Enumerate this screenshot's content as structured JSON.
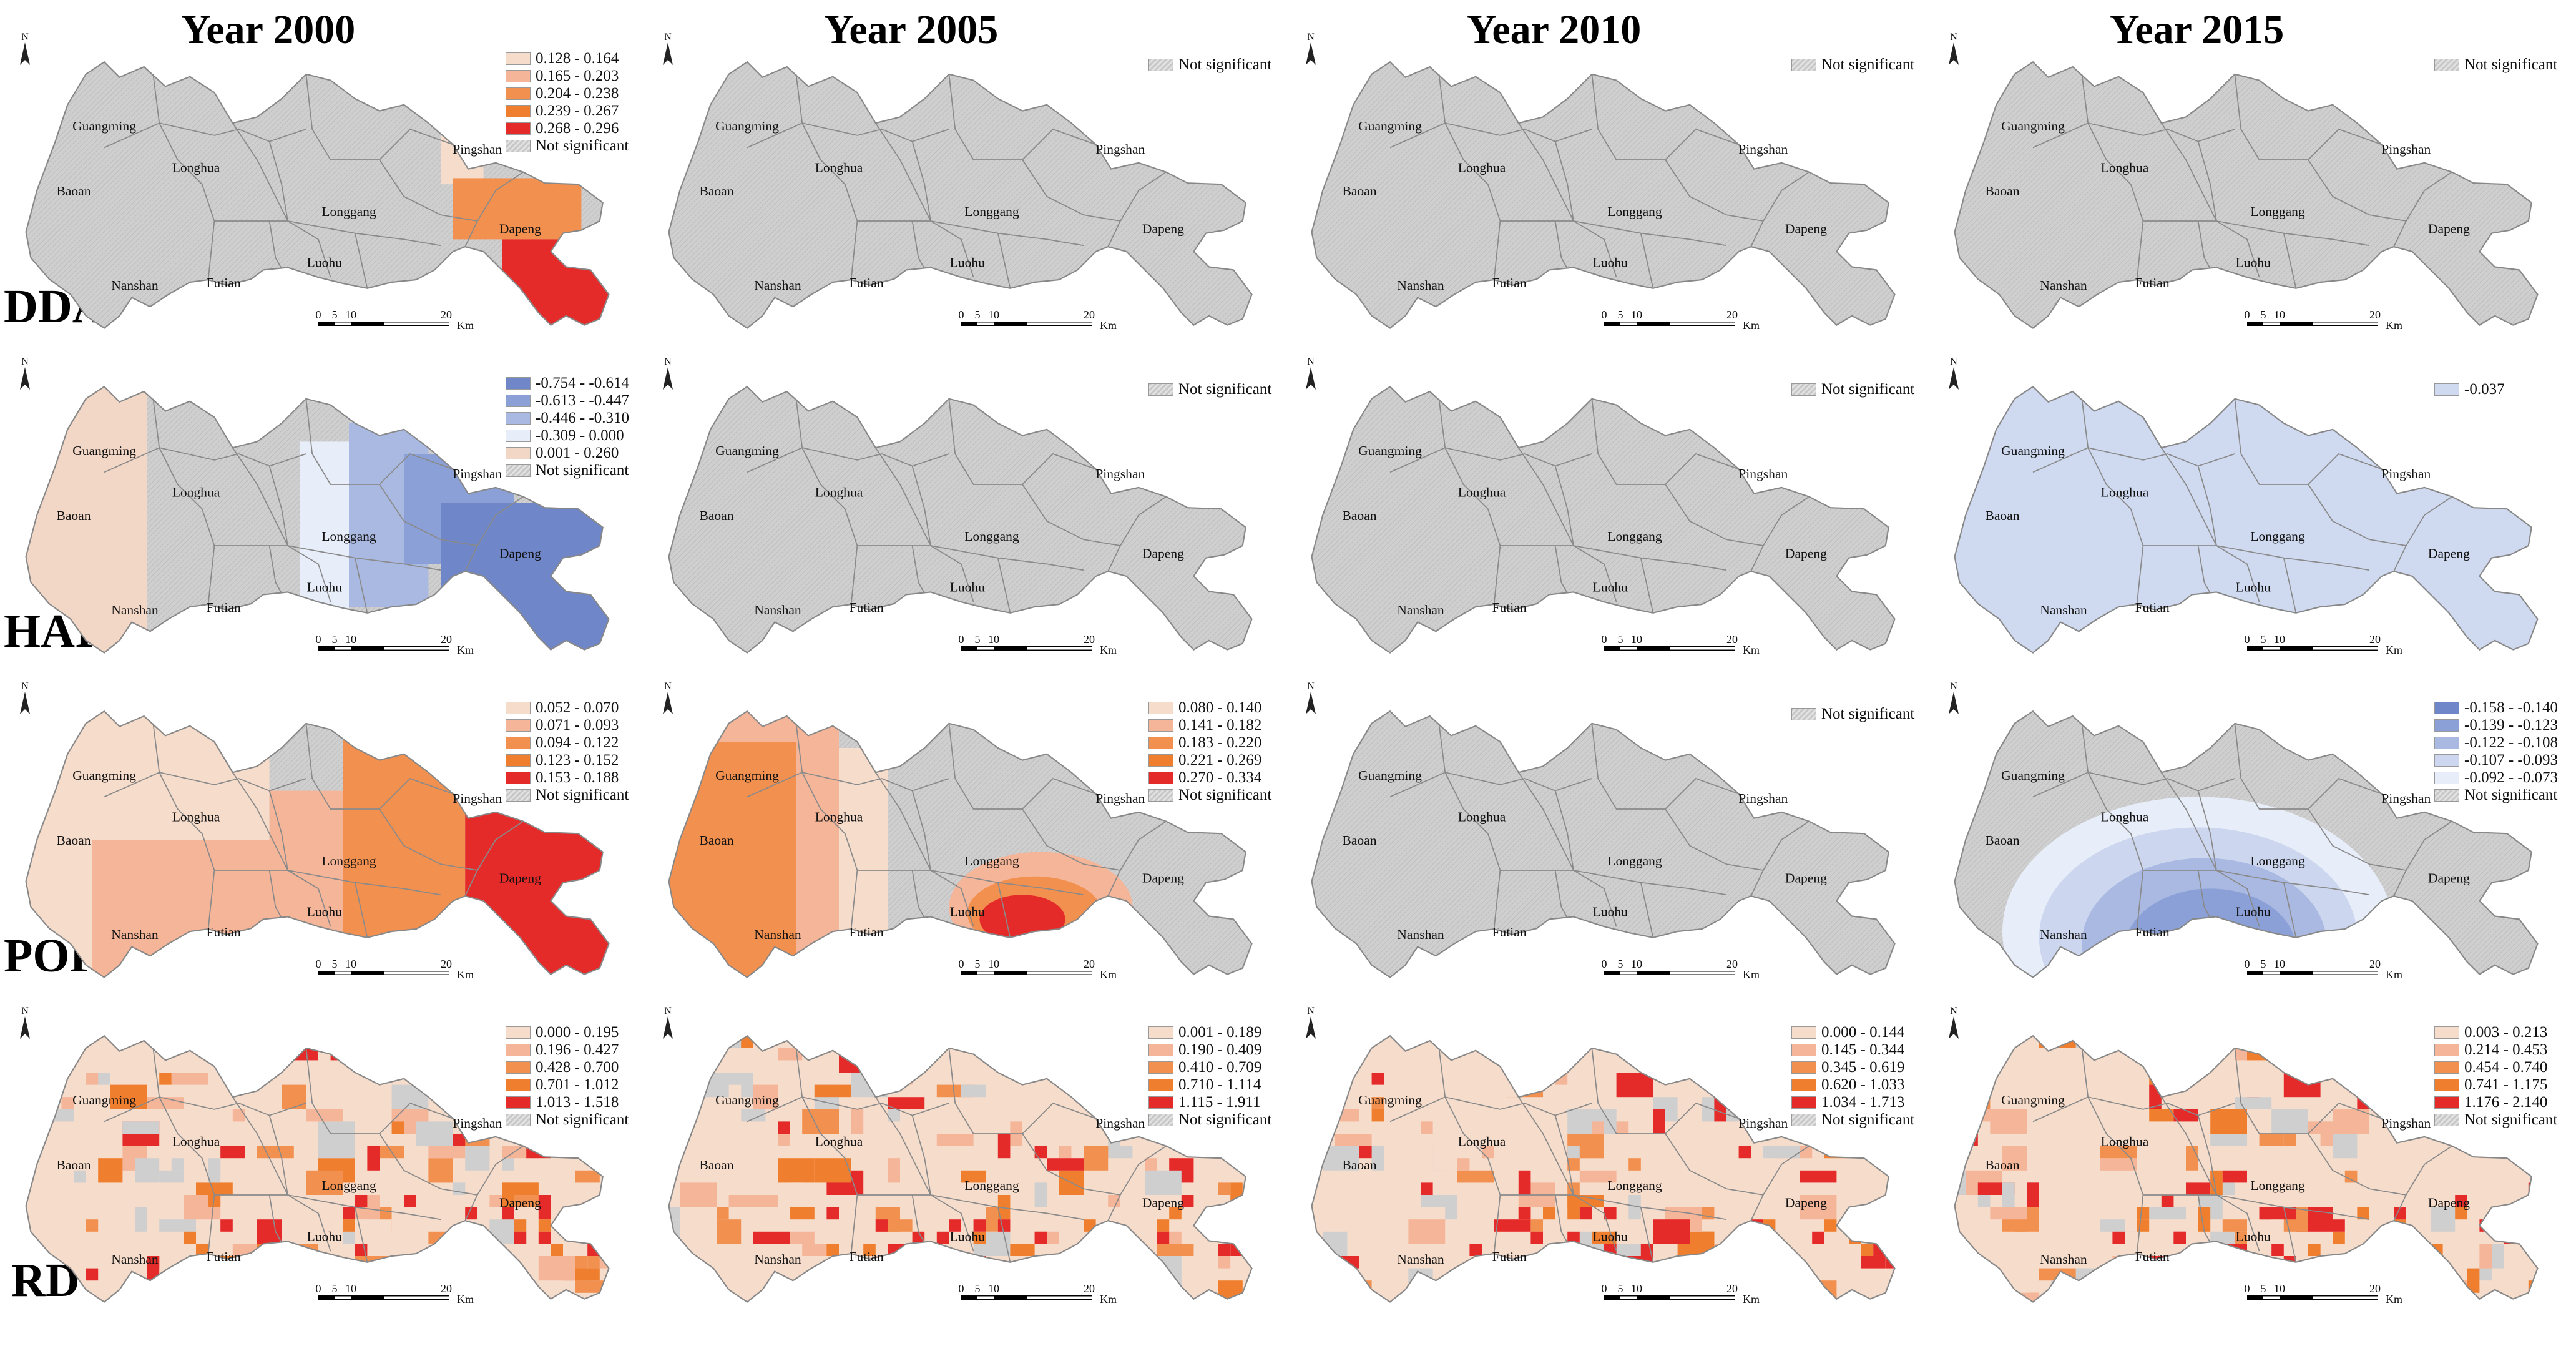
{
  "columns": [
    "Year 2000",
    "Year 2005",
    "Year 2010",
    "Year 2015"
  ],
  "rows": [
    "DDA",
    "HAI",
    "POP",
    "RD"
  ],
  "districts": [
    "Guangming",
    "Baoan",
    "Longhua",
    "Longgang",
    "Pingshan",
    "Dapeng",
    "Nanshan",
    "Futian",
    "Luohu"
  ],
  "scale_bar": {
    "ticks": [
      "0",
      "5",
      "10",
      "20"
    ],
    "unit": "Km"
  },
  "north_label": "N",
  "not_significant_label": "Not significant",
  "colors": {
    "base_gray": "#cfcfcf",
    "border": "#8a8a8a",
    "hatch_dark": "#bdbdbd",
    "orange_scale": [
      "#f6dccb",
      "#f5b598",
      "#f2904f",
      "#ef7f2e",
      "#e52a2a"
    ],
    "blue_scale": [
      "#6f86c8",
      "#8aa0d6",
      "#aab9e2",
      "#ccd7ef",
      "#e8eef9"
    ],
    "hai_pos": "#f3d7c6",
    "hai_2015": "#cfdaf1"
  },
  "panels": [
    {
      "row": 0,
      "col": 0,
      "zones": "dda2000",
      "legend": [
        {
          "label": "0.128 - 0.164",
          "c": "#f6dccb"
        },
        {
          "label": "0.165 - 0.203",
          "c": "#f5b598"
        },
        {
          "label": "0.204 - 0.238",
          "c": "#f2904f"
        },
        {
          "label": "0.239 - 0.267",
          "c": "#ef7f2e"
        },
        {
          "label": "0.268 - 0.296",
          "c": "#e52a2a"
        },
        {
          "label": "Not significant",
          "c": "ns"
        }
      ]
    },
    {
      "row": 0,
      "col": 1,
      "zones": "none",
      "legend": [
        {
          "label": "Not significant",
          "c": "ns"
        }
      ]
    },
    {
      "row": 0,
      "col": 2,
      "zones": "none",
      "legend": [
        {
          "label": "Not significant",
          "c": "ns"
        }
      ]
    },
    {
      "row": 0,
      "col": 3,
      "zones": "none",
      "legend": [
        {
          "label": "Not significant",
          "c": "ns"
        }
      ]
    },
    {
      "row": 1,
      "col": 0,
      "zones": "hai2000",
      "legend": [
        {
          "label": "-0.754 - -0.614",
          "c": "#6f86c8"
        },
        {
          "label": "-0.613 - -0.447",
          "c": "#8aa0d6"
        },
        {
          "label": "-0.446 - -0.310",
          "c": "#aab9e2"
        },
        {
          "label": "-0.309 - 0.000",
          "c": "#e8eef9"
        },
        {
          "label": "0.001 - 0.260",
          "c": "#f3d7c6"
        },
        {
          "label": "Not significant",
          "c": "ns"
        }
      ]
    },
    {
      "row": 1,
      "col": 1,
      "zones": "none",
      "legend": [
        {
          "label": "Not significant",
          "c": "ns"
        }
      ]
    },
    {
      "row": 1,
      "col": 2,
      "zones": "none",
      "legend": [
        {
          "label": "Not significant",
          "c": "ns"
        }
      ]
    },
    {
      "row": 1,
      "col": 3,
      "zones": "hai2015",
      "legend": [
        {
          "label": "-0.037",
          "c": "#cfdaf1"
        }
      ]
    },
    {
      "row": 2,
      "col": 0,
      "zones": "pop2000",
      "legend": [
        {
          "label": "0.052 - 0.070",
          "c": "#f6dccb"
        },
        {
          "label": "0.071 - 0.093",
          "c": "#f5b598"
        },
        {
          "label": "0.094 - 0.122",
          "c": "#f2904f"
        },
        {
          "label": "0.123 - 0.152",
          "c": "#ef7f2e"
        },
        {
          "label": "0.153 - 0.188",
          "c": "#e52a2a"
        },
        {
          "label": "Not significant",
          "c": "ns"
        }
      ]
    },
    {
      "row": 2,
      "col": 1,
      "zones": "pop2005",
      "legend": [
        {
          "label": "0.080 - 0.140",
          "c": "#f6dccb"
        },
        {
          "label": "0.141 - 0.182",
          "c": "#f5b598"
        },
        {
          "label": "0.183 - 0.220",
          "c": "#f2904f"
        },
        {
          "label": "0.221 - 0.269",
          "c": "#ef7f2e"
        },
        {
          "label": "0.270 - 0.334",
          "c": "#e52a2a"
        },
        {
          "label": "Not significant",
          "c": "ns"
        }
      ]
    },
    {
      "row": 2,
      "col": 2,
      "zones": "none",
      "legend": [
        {
          "label": "Not significant",
          "c": "ns"
        }
      ]
    },
    {
      "row": 2,
      "col": 3,
      "zones": "pop2015",
      "legend": [
        {
          "label": "-0.158 - -0.140",
          "c": "#6f86c8"
        },
        {
          "label": "-0.139 - -0.123",
          "c": "#8aa0d6"
        },
        {
          "label": "-0.122 - -0.108",
          "c": "#aab9e2"
        },
        {
          "label": "-0.107 - -0.093",
          "c": "#ccd7ef"
        },
        {
          "label": "-0.092 - -0.073",
          "c": "#e8eef9"
        },
        {
          "label": "Not significant",
          "c": "ns"
        }
      ]
    },
    {
      "row": 3,
      "col": 0,
      "zones": "rd",
      "legend": [
        {
          "label": "0.000 - 0.195",
          "c": "#f6dccb"
        },
        {
          "label": "0.196 - 0.427",
          "c": "#f5b598"
        },
        {
          "label": "0.428 - 0.700",
          "c": "#f2904f"
        },
        {
          "label": "0.701 - 1.012",
          "c": "#ef7f2e"
        },
        {
          "label": "1.013 - 1.518",
          "c": "#e52a2a"
        },
        {
          "label": "Not significant",
          "c": "ns"
        }
      ]
    },
    {
      "row": 3,
      "col": 1,
      "zones": "rd",
      "legend": [
        {
          "label": "0.001 - 0.189",
          "c": "#f6dccb"
        },
        {
          "label": "0.190 - 0.409",
          "c": "#f5b598"
        },
        {
          "label": "0.410 - 0.709",
          "c": "#f2904f"
        },
        {
          "label": "0.710 - 1.114",
          "c": "#ef7f2e"
        },
        {
          "label": "1.115 - 1.911",
          "c": "#e52a2a"
        },
        {
          "label": "Not significant",
          "c": "ns"
        }
      ]
    },
    {
      "row": 3,
      "col": 2,
      "zones": "rd",
      "legend": [
        {
          "label": "0.000 - 0.144",
          "c": "#f6dccb"
        },
        {
          "label": "0.145 - 0.344",
          "c": "#f5b598"
        },
        {
          "label": "0.345 - 0.619",
          "c": "#f2904f"
        },
        {
          "label": "0.620 - 1.033",
          "c": "#ef7f2e"
        },
        {
          "label": "1.034 - 1.713",
          "c": "#e52a2a"
        },
        {
          "label": "Not significant",
          "c": "ns"
        }
      ]
    },
    {
      "row": 3,
      "col": 3,
      "zones": "rd",
      "legend": [
        {
          "label": "0.003 - 0.213",
          "c": "#f6dccb"
        },
        {
          "label": "0.214 - 0.453",
          "c": "#f5b598"
        },
        {
          "label": "0.454 - 0.740",
          "c": "#f2904f"
        },
        {
          "label": "0.741 - 1.175",
          "c": "#ef7f2e"
        },
        {
          "label": "1.176 - 2.140",
          "c": "#e52a2a"
        },
        {
          "label": "Not significant",
          "c": "ns"
        }
      ]
    }
  ]
}
